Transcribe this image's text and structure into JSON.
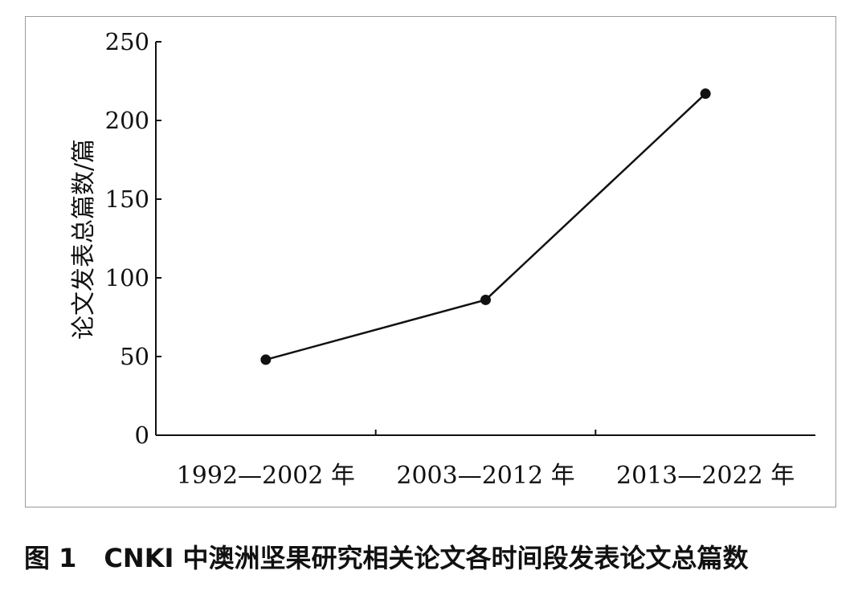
{
  "chart_data": {
    "type": "line",
    "categories": [
      "1992—2002 年",
      "2003—2012 年",
      "2013—2022 年"
    ],
    "values": [
      48,
      86,
      217
    ],
    "ylabel": "论文发表总篇数/篇",
    "xlabel": "",
    "ylim": [
      0,
      250
    ],
    "yticks": [
      "0",
      "50",
      "100",
      "150",
      "200",
      "250"
    ],
    "grid": false,
    "legend": "none",
    "line_color": "#111111",
    "marker": "filled-circle"
  },
  "caption": {
    "number": "图 1",
    "text": "CNKI 中澳洲坚果研究相关论文各时间段发表论文总篇数"
  }
}
